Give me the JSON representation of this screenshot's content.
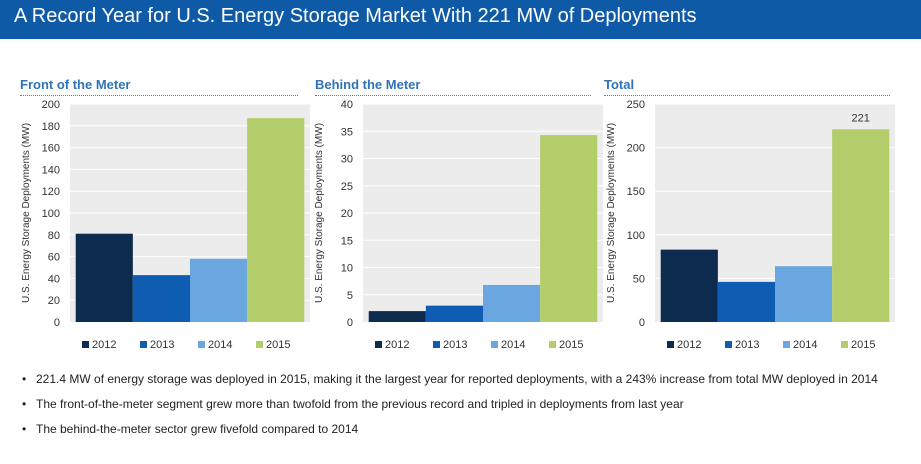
{
  "header": {
    "title": "A Record Year for U.S. Energy Storage Market With 221 MW of Deployments"
  },
  "colors": {
    "title_bar": "#0e5aa7",
    "plot_bg": "#ececec",
    "grid": "#ffffff",
    "panel_title": "#2f73b6",
    "series_2012": "#0d2b4e",
    "series_2013": "#0f5db3",
    "series_2014": "#6aa7e0",
    "series_2015": "#b3cd6a"
  },
  "chart_data": [
    {
      "type": "bar",
      "title": "Front of the Meter",
      "categories": [
        "2012",
        "2013",
        "2014",
        "2015"
      ],
      "values": [
        81,
        43,
        58,
        187
      ],
      "ylabel": "U.S. Energy Storage Deployments (MW)",
      "ylim": [
        0,
        200
      ],
      "yticks": [
        "0",
        "20",
        "40",
        "60",
        "80",
        "100",
        "120",
        "140",
        "160",
        "180",
        "200"
      ],
      "legend": [
        "2012",
        "2013",
        "2014",
        "2015"
      ],
      "legend_position": "bottom",
      "grid": true,
      "data_labels": []
    },
    {
      "type": "bar",
      "title": "Behind the Meter",
      "categories": [
        "2012",
        "2013",
        "2014",
        "2015"
      ],
      "values": [
        2,
        3,
        6.8,
        34.3
      ],
      "ylabel": "U.S. Energy Storage Deployments (MW)",
      "ylim": [
        0,
        40
      ],
      "yticks": [
        "0",
        "5",
        "10",
        "15",
        "20",
        "25",
        "30",
        "35",
        "40"
      ],
      "legend": [
        "2012",
        "2013",
        "2014",
        "2015"
      ],
      "legend_position": "bottom",
      "grid": true,
      "data_labels": []
    },
    {
      "type": "bar",
      "title": "Total",
      "categories": [
        "2012",
        "2013",
        "2014",
        "2015"
      ],
      "values": [
        83,
        46,
        64,
        221
      ],
      "ylabel": "U.S. Energy Storage Deployments (MW)",
      "ylim": [
        0,
        250
      ],
      "yticks": [
        "0",
        "50",
        "100",
        "150",
        "200",
        "250"
      ],
      "legend": [
        "2012",
        "2013",
        "2014",
        "2015"
      ],
      "legend_position": "bottom",
      "grid": true,
      "data_labels": [
        "",
        "",
        "",
        "221"
      ]
    }
  ],
  "bullets": [
    "221.4 MW of energy storage was deployed in 2015, making it the largest year for reported deployments, with a 243% increase from total MW deployed in 2014",
    "The front-of-the-meter segment grew more than twofold from the previous record and tripled in deployments from last year",
    "The behind-the-meter sector grew fivefold compared to 2014"
  ],
  "bullet_char": "•"
}
